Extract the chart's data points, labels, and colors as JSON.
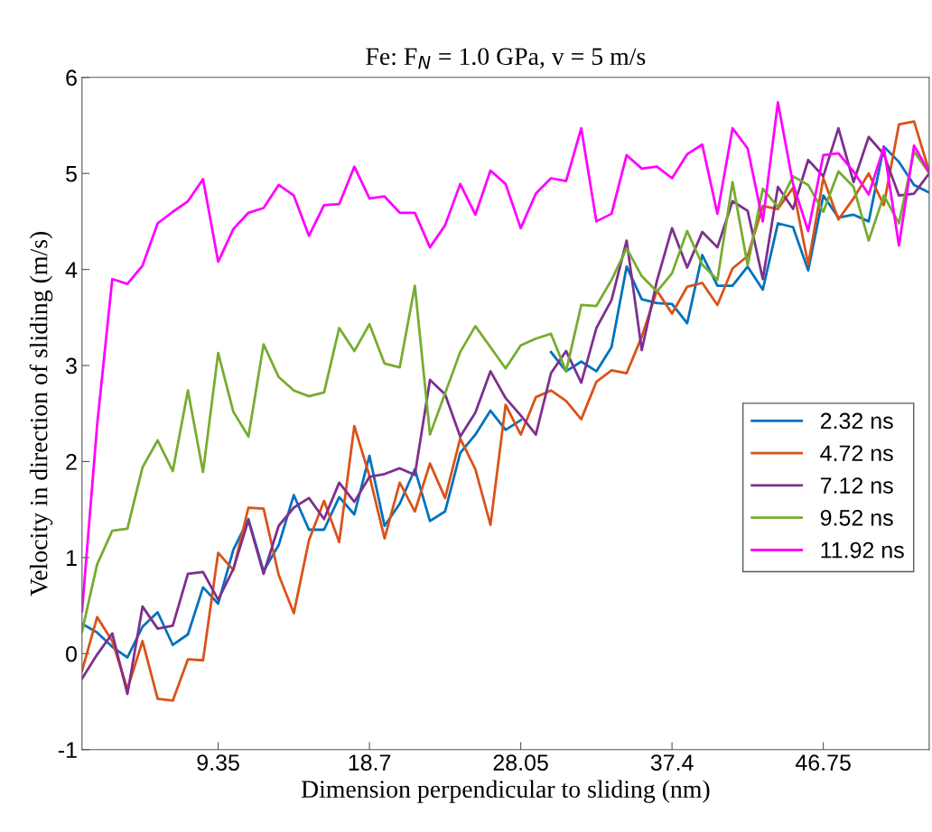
{
  "chart_data": {
    "type": "line",
    "title": "Fe: F$_{N}$ = 1.0 GPa, v = 5 m/s",
    "xlabel": "Dimension perpendicular to sliding (nm)",
    "ylabel": "Velocity in direction of sliding (m/s)",
    "x": [
      0.935,
      1.87,
      2.805,
      3.74,
      4.675,
      5.61,
      6.545,
      7.48,
      8.415,
      9.35,
      10.285,
      11.22,
      12.155,
      13.09,
      14.025,
      14.96,
      15.895,
      16.83,
      17.765,
      18.7,
      19.635,
      20.57,
      21.505,
      22.44,
      23.375,
      24.31,
      25.245,
      26.18,
      27.115,
      28.05,
      28.985,
      29.92,
      30.855,
      31.79,
      32.725,
      33.66,
      34.595,
      35.53,
      36.465,
      37.4,
      38.335,
      39.27,
      40.205,
      41.14,
      42.075,
      43.01,
      43.945,
      44.88,
      45.815,
      46.75,
      47.685,
      48.62,
      49.555,
      50.49,
      51.425,
      52.36,
      53.295
    ],
    "xlim": [
      0.935,
      53.295
    ],
    "xticks": [
      9.35,
      18.7,
      28.05,
      37.4,
      46.75
    ],
    "ylim": [
      -1,
      6
    ],
    "yticks": [
      -1,
      0,
      1,
      2,
      3,
      4,
      5,
      6
    ],
    "grid": false,
    "legend": "center right",
    "marker": "none",
    "line_style": "solid",
    "series": [
      {
        "name": "2.32 ns",
        "color": "#0072bd",
        "values": [
          0.31,
          0.22,
          0.07,
          -0.04,
          0.28,
          0.43,
          0.09,
          0.2,
          0.69,
          0.52,
          1.08,
          1.4,
          0.86,
          1.13,
          1.65,
          1.29,
          1.29,
          1.63,
          1.45,
          2.06,
          1.33,
          1.56,
          1.92,
          1.38,
          1.48,
          2.09,
          2.28,
          2.53,
          2.33,
          2.43,
          null,
          3.14,
          2.94,
          3.04,
          2.94,
          3.19,
          4.03,
          3.69,
          3.65,
          3.64,
          3.44,
          4.15,
          3.83,
          3.83,
          4.03,
          3.79,
          4.48,
          4.44,
          3.99,
          4.77,
          4.54,
          4.57,
          4.5,
          5.28,
          5.12,
          4.88,
          4.8
        ]
      },
      {
        "name": "4.72 ns",
        "color": "#d95319",
        "values": [
          -0.18,
          0.38,
          0.13,
          -0.37,
          0.13,
          -0.47,
          -0.49,
          -0.06,
          -0.07,
          1.05,
          0.87,
          1.52,
          1.51,
          0.82,
          0.42,
          1.18,
          1.59,
          1.16,
          2.37,
          1.85,
          1.2,
          1.78,
          1.48,
          1.98,
          1.62,
          2.24,
          1.92,
          1.34,
          2.59,
          2.28,
          2.67,
          2.74,
          2.63,
          2.44,
          2.83,
          2.95,
          2.92,
          3.3,
          3.78,
          3.54,
          3.82,
          3.86,
          3.63,
          4.01,
          4.14,
          4.66,
          4.63,
          4.85,
          4.05,
          4.95,
          4.52,
          4.74,
          5.0,
          4.67,
          5.51,
          5.54,
          5.02
        ]
      },
      {
        "name": "7.12 ns",
        "color": "#7e2f8e",
        "values": [
          -0.26,
          -0.01,
          0.21,
          -0.42,
          0.49,
          0.26,
          0.29,
          0.83,
          0.85,
          0.56,
          0.88,
          1.39,
          0.83,
          1.33,
          1.52,
          1.62,
          1.4,
          1.78,
          1.58,
          1.84,
          1.87,
          1.93,
          1.86,
          2.85,
          2.7,
          2.26,
          2.51,
          2.94,
          2.66,
          2.48,
          2.28,
          2.92,
          3.15,
          2.82,
          3.39,
          3.68,
          4.3,
          3.16,
          3.88,
          4.43,
          4.02,
          4.39,
          4.23,
          4.71,
          4.61,
          3.9,
          4.86,
          4.63,
          5.14,
          4.97,
          5.47,
          4.91,
          5.38,
          5.2,
          4.77,
          4.79,
          5.0
        ]
      },
      {
        "name": "9.52 ns",
        "color": "#77ac30",
        "values": [
          0.23,
          0.93,
          1.28,
          1.3,
          1.94,
          2.22,
          1.9,
          2.74,
          1.89,
          3.13,
          2.52,
          2.26,
          3.22,
          2.88,
          2.74,
          2.68,
          2.72,
          3.39,
          3.15,
          3.43,
          3.02,
          2.98,
          3.83,
          2.28,
          2.71,
          3.14,
          3.41,
          3.19,
          2.97,
          3.21,
          3.28,
          3.33,
          2.94,
          3.63,
          3.62,
          3.89,
          4.22,
          3.93,
          3.77,
          3.96,
          4.4,
          4.05,
          3.89,
          4.91,
          4.04,
          4.84,
          4.65,
          4.97,
          4.88,
          4.6,
          5.02,
          4.86,
          4.3,
          4.77,
          4.48,
          5.23,
          5.0
        ]
      },
      {
        "name": "11.92 ns",
        "color": "#ff00ff",
        "values": [
          0.44,
          2.38,
          3.9,
          3.85,
          4.04,
          4.48,
          4.6,
          4.71,
          4.94,
          4.08,
          4.42,
          4.59,
          4.64,
          4.88,
          4.77,
          4.35,
          4.67,
          4.68,
          5.07,
          4.74,
          4.76,
          4.59,
          4.59,
          4.23,
          4.46,
          4.89,
          4.57,
          5.03,
          4.89,
          4.43,
          4.79,
          4.95,
          4.92,
          5.47,
          4.5,
          4.58,
          5.19,
          5.05,
          5.07,
          4.95,
          5.2,
          5.3,
          4.58,
          5.47,
          5.26,
          4.5,
          5.74,
          4.89,
          4.4,
          5.19,
          5.21,
          5.02,
          4.78,
          5.27,
          4.25,
          5.29,
          5.01
        ]
      }
    ]
  }
}
